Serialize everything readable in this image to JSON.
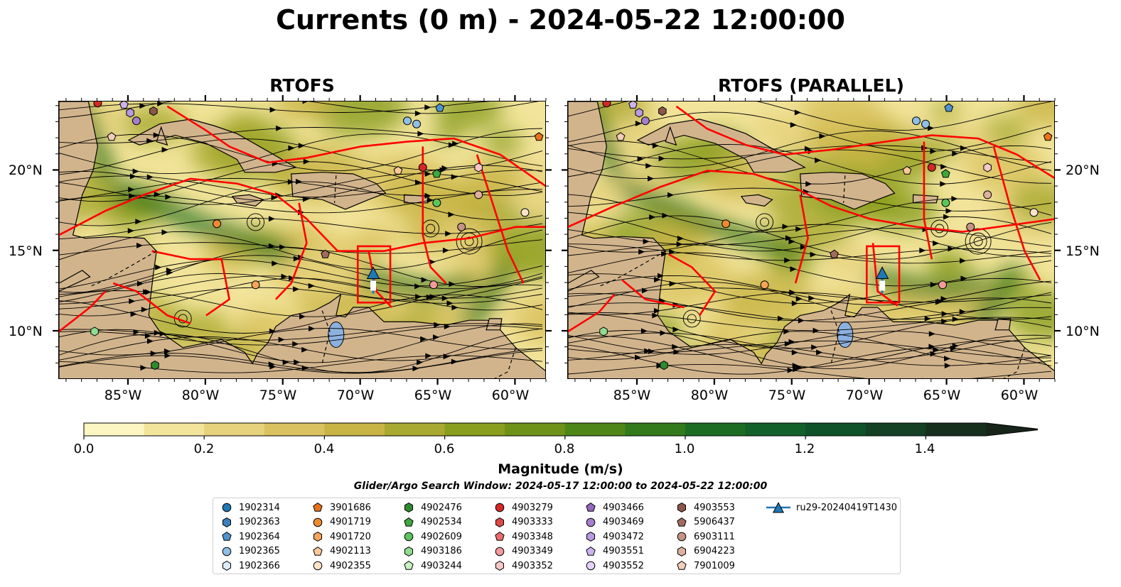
{
  "title": "Currents (0 m) - 2024-05-22 12:00:00",
  "panels": [
    {
      "title": "RTOFS"
    },
    {
      "title": "RTOFS (PARALLEL)"
    }
  ],
  "lat_ticks": [
    "20°N",
    "15°N",
    "10°N"
  ],
  "lon_ticks": [
    "85°W",
    "80°W",
    "75°W",
    "70°W",
    "65°W",
    "60°W"
  ],
  "map_extent": {
    "lon_min": -89.5,
    "lon_max": -58.0,
    "lat_min": 7.0,
    "lat_max": 24.3
  },
  "colorbar": {
    "label": "Magnitude (m/s)",
    "ticks": [
      "0.0",
      "0.2",
      "0.4",
      "0.6",
      "0.8",
      "1.0",
      "1.2",
      "1.4"
    ],
    "range": [
      0.0,
      1.5
    ],
    "extend": "max",
    "colors": [
      "#fcf6c2",
      "#f2e49a",
      "#e6d27c",
      "#d9c25f",
      "#c8b445",
      "#a8a930",
      "#8a9e1e",
      "#6e9218",
      "#4f8618",
      "#327a1c",
      "#1d6c24",
      "#12602a",
      "#0f5229",
      "#144024",
      "#162f1c",
      "#16241a"
    ]
  },
  "colors": {
    "land": "#d2b48c",
    "boundary": "#ff0000",
    "lake": "#8cb1e0",
    "river": "#a6bddb"
  },
  "search_window": "Glider/Argo Search Window: 2024-05-17 12:00:00 to 2024-05-22 12:00:00",
  "legend": [
    {
      "label": "1902314",
      "marker": "circle",
      "color": "#1f77b4"
    },
    {
      "label": "1902363",
      "marker": "hexagon",
      "color": "#3a7fba"
    },
    {
      "label": "1902364",
      "marker": "pentagon",
      "color": "#4f94cd"
    },
    {
      "label": "1902365",
      "marker": "circle",
      "color": "#8fbfe6"
    },
    {
      "label": "1902366",
      "marker": "hexagon",
      "color": "#dcecfa"
    },
    {
      "label": "3901686",
      "marker": "pentagon",
      "color": "#e8721a"
    },
    {
      "label": "4901719",
      "marker": "circle",
      "color": "#f08a30"
    },
    {
      "label": "4901720",
      "marker": "hexagon",
      "color": "#f5a45a"
    },
    {
      "label": "4902113",
      "marker": "pentagon",
      "color": "#fbc99a"
    },
    {
      "label": "4902355",
      "marker": "circle",
      "color": "#fde3c8"
    },
    {
      "label": "4902476",
      "marker": "hexagon",
      "color": "#2e8b2e"
    },
    {
      "label": "4902534",
      "marker": "pentagon",
      "color": "#3ea83e"
    },
    {
      "label": "4902609",
      "marker": "circle",
      "color": "#5cc45c"
    },
    {
      "label": "4903186",
      "marker": "hexagon",
      "color": "#90dc90"
    },
    {
      "label": "4903244",
      "marker": "pentagon",
      "color": "#c9f2c0"
    },
    {
      "label": "4903279",
      "marker": "circle",
      "color": "#d62728"
    },
    {
      "label": "4903333",
      "marker": "hexagon",
      "color": "#e04848"
    },
    {
      "label": "4903348",
      "marker": "pentagon",
      "color": "#ea6c6c"
    },
    {
      "label": "4903349",
      "marker": "circle",
      "color": "#f39a9a"
    },
    {
      "label": "4903352",
      "marker": "hexagon",
      "color": "#f8c8c8"
    },
    {
      "label": "4903466",
      "marker": "pentagon",
      "color": "#9467bd"
    },
    {
      "label": "4903469",
      "marker": "circle",
      "color": "#a47fcc"
    },
    {
      "label": "4903472",
      "marker": "hexagon",
      "color": "#b79ae0"
    },
    {
      "label": "4903551",
      "marker": "pentagon",
      "color": "#cdb4f0"
    },
    {
      "label": "4903552",
      "marker": "circle",
      "color": "#e4d2fa"
    },
    {
      "label": "4903553",
      "marker": "hexagon",
      "color": "#8c564b"
    },
    {
      "label": "5906437",
      "marker": "pentagon",
      "color": "#a06c5e"
    },
    {
      "label": "6903111",
      "marker": "circle",
      "color": "#c49484"
    },
    {
      "label": "6904223",
      "marker": "hexagon",
      "color": "#dcb0a0"
    },
    {
      "label": "7901009",
      "marker": "pentagon",
      "color": "#f3cdb8"
    },
    {
      "label": "ru29-20240419T1430",
      "marker": "triangle-line",
      "color": "#1f77b4"
    }
  ],
  "map_markers": [
    {
      "lon": -85.3,
      "lat": 24.1,
      "marker": "pentagon",
      "color": "#cdb4f0"
    },
    {
      "lon": -84.9,
      "lat": 23.6,
      "marker": "hexagon",
      "color": "#b79ae0"
    },
    {
      "lon": -84.5,
      "lat": 23.1,
      "marker": "circle",
      "color": "#a47fcc"
    },
    {
      "lon": -83.4,
      "lat": 23.7,
      "marker": "hexagon",
      "color": "#8c564b"
    },
    {
      "lon": -87.0,
      "lat": 24.2,
      "marker": "circle",
      "color": "#d62728"
    },
    {
      "lon": -86.1,
      "lat": 22.1,
      "marker": "pentagon",
      "color": "#f3cdb8"
    },
    {
      "lon": -79.3,
      "lat": 16.7,
      "marker": "circle",
      "color": "#f08a30"
    },
    {
      "lon": -76.8,
      "lat": 12.9,
      "marker": "circle",
      "color": "#f5a45a"
    },
    {
      "lon": -72.3,
      "lat": 14.8,
      "marker": "pentagon",
      "color": "#a06c5e"
    },
    {
      "lon": -67.0,
      "lat": 23.1,
      "marker": "circle",
      "color": "#8fbfe6"
    },
    {
      "lon": -66.4,
      "lat": 22.9,
      "marker": "circle",
      "color": "#8fbfe6"
    },
    {
      "lon": -64.9,
      "lat": 23.9,
      "marker": "pentagon",
      "color": "#4f94cd"
    },
    {
      "lon": -58.5,
      "lat": 22.1,
      "marker": "pentagon",
      "color": "#e8721a"
    },
    {
      "lon": -67.6,
      "lat": 20.0,
      "marker": "pentagon",
      "color": "#fbc99a"
    },
    {
      "lon": -66.0,
      "lat": 20.2,
      "marker": "circle",
      "color": "#d62728"
    },
    {
      "lon": -65.1,
      "lat": 19.8,
      "marker": "pentagon",
      "color": "#3ea83e"
    },
    {
      "lon": -62.4,
      "lat": 20.2,
      "marker": "hexagon",
      "color": "#f8c8c8"
    },
    {
      "lon": -65.1,
      "lat": 18.0,
      "marker": "circle",
      "color": "#5cc45c"
    },
    {
      "lon": -62.4,
      "lat": 18.5,
      "marker": "circle",
      "color": "#dcb0a0"
    },
    {
      "lon": -63.5,
      "lat": 16.5,
      "marker": "circle",
      "color": "#c49484"
    },
    {
      "lon": -59.4,
      "lat": 17.4,
      "marker": "circle",
      "color": "#fde3c8"
    },
    {
      "lon": -65.3,
      "lat": 12.9,
      "marker": "circle",
      "color": "#f39a9a"
    },
    {
      "lon": -87.2,
      "lat": 10.0,
      "marker": "hexagon",
      "color": "#90dc90"
    },
    {
      "lon": -83.3,
      "lat": 7.9,
      "marker": "hexagon",
      "color": "#2e8b2e"
    }
  ],
  "glider": {
    "lon": -69.2,
    "lat": 13.6
  }
}
